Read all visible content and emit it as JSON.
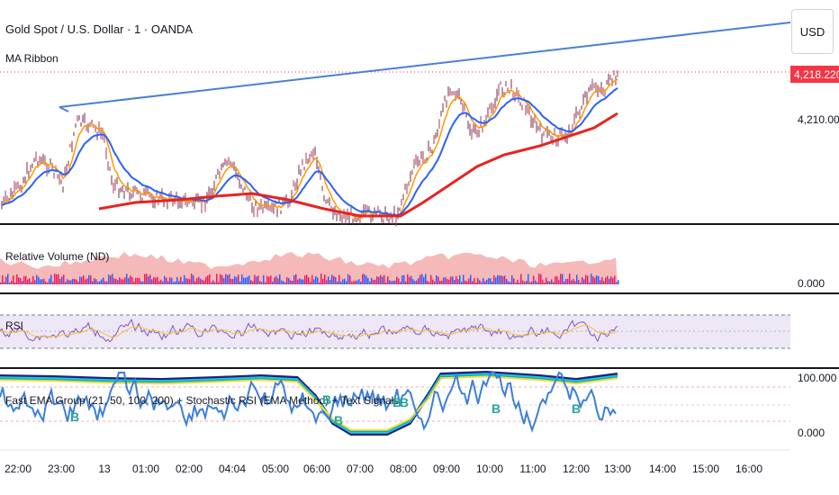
{
  "header": {
    "symbol_title": "Gold Spot / U.S. Dollar · 1 · OANDA",
    "indicator_ma": "MA Ribbon"
  },
  "currency_button": "USD",
  "price_axis": {
    "last_price": "4,218.220",
    "price_label": "4,210.000"
  },
  "panes": {
    "volume": {
      "title": "Relative Volume (ND)",
      "axis": "0.000"
    },
    "rsi": {
      "title": "RSI"
    },
    "ema": {
      "title": "Fast EMA Group (21, 50, 100, 200) + Stochastic RSI (EMA Method) + Text Signals",
      "axis_top": "100.000",
      "axis_bottom": "0.000",
      "signals": [
        "B",
        "B",
        "B",
        "B",
        "B",
        "B",
        "B"
      ]
    }
  },
  "time_axis": [
    "22:00",
    "23:00",
    "13",
    "01:00",
    "02:00",
    "04:04",
    "05:00",
    "06:00",
    "07:00",
    "08:00",
    "09:00",
    "10:00",
    "11:00",
    "12:00",
    "13:00",
    "14:00",
    "15:00",
    "16:00"
  ],
  "colors": {
    "trendline": "#4a7fd8",
    "price_tag": "#f23645",
    "ma_fast": "#ff9800",
    "ma_mid": "#2962ff",
    "ma_slow": "#e8231f",
    "rsi": "#7e57c2",
    "volume_area": "#f2a8a8"
  }
}
